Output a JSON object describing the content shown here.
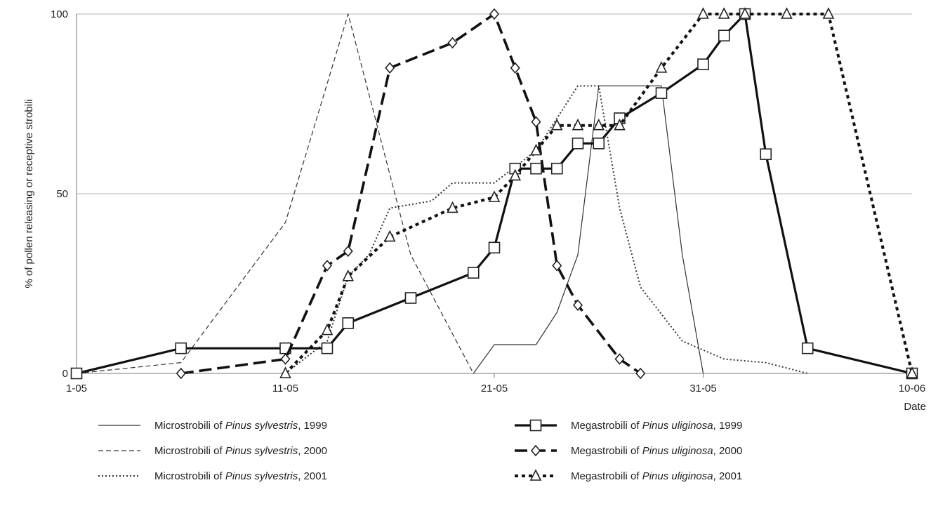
{
  "chart_data": {
    "type": "line",
    "title": "",
    "xlabel": "Date",
    "ylabel": "% of pollen releasing or receptive strobili",
    "x_ticks": [
      "1-05",
      "11-05",
      "21-05",
      "31-05",
      "10-06"
    ],
    "y_ticks": [
      "0",
      "50",
      "100"
    ],
    "xlim": [
      "2000-05-01",
      "2000-06-10"
    ],
    "ylim": [
      0,
      100
    ],
    "grid": "horizontal",
    "legend_position": "bottom",
    "series": [
      {
        "name_prefix": "Microstrobili of ",
        "name_species": "Pinus sylvestris",
        "name_suffix": ", 1999",
        "style": "thin-solid",
        "marker": "none",
        "points": [
          {
            "x": "2000-05-20",
            "y": 0
          },
          {
            "x": "2000-05-21",
            "y": 8
          },
          {
            "x": "2000-05-23",
            "y": 8
          },
          {
            "x": "2000-05-24",
            "y": 17
          },
          {
            "x": "2000-05-25",
            "y": 33
          },
          {
            "x": "2000-05-26",
            "y": 80
          },
          {
            "x": "2000-05-29",
            "y": 80
          },
          {
            "x": "2000-05-30",
            "y": 33
          },
          {
            "x": "2000-05-31",
            "y": 0
          }
        ]
      },
      {
        "name_prefix": "Microstrobili of ",
        "name_species": "Pinus sylvestris",
        "name_suffix": ", 2000",
        "style": "thin-dashed",
        "marker": "none",
        "points": [
          {
            "x": "2000-05-01",
            "y": 0
          },
          {
            "x": "2000-05-06",
            "y": 3
          },
          {
            "x": "2000-05-11",
            "y": 42
          },
          {
            "x": "2000-05-14",
            "y": 100
          },
          {
            "x": "2000-05-17",
            "y": 33
          },
          {
            "x": "2000-05-20",
            "y": 0
          }
        ]
      },
      {
        "name_prefix": "Microstrobili of ",
        "name_species": "Pinus sylvestris",
        "name_suffix": ", 2001",
        "style": "dotted",
        "marker": "none",
        "points": [
          {
            "x": "2000-05-11",
            "y": 0
          },
          {
            "x": "2000-05-13",
            "y": 9
          },
          {
            "x": "2000-05-14",
            "y": 27
          },
          {
            "x": "2000-05-15",
            "y": 33
          },
          {
            "x": "2000-05-16",
            "y": 46
          },
          {
            "x": "2000-05-18",
            "y": 48
          },
          {
            "x": "2000-05-19",
            "y": 53
          },
          {
            "x": "2000-05-21",
            "y": 53
          },
          {
            "x": "2000-05-23",
            "y": 62
          },
          {
            "x": "2000-05-25",
            "y": 80
          },
          {
            "x": "2000-05-26",
            "y": 80
          },
          {
            "x": "2000-05-27",
            "y": 46
          },
          {
            "x": "2000-05-28",
            "y": 24
          },
          {
            "x": "2000-05-30",
            "y": 9
          },
          {
            "x": "2000-06-01",
            "y": 4
          },
          {
            "x": "2000-06-03",
            "y": 3
          },
          {
            "x": "2000-06-05",
            "y": 0
          }
        ]
      },
      {
        "name_prefix": "Megastrobili of ",
        "name_species": "Pinus uliginosa",
        "name_suffix": ", 1999",
        "style": "thick-solid",
        "marker": "square",
        "points": [
          {
            "x": "2000-05-01",
            "y": 0
          },
          {
            "x": "2000-05-06",
            "y": 7
          },
          {
            "x": "2000-05-11",
            "y": 7
          },
          {
            "x": "2000-05-13",
            "y": 7
          },
          {
            "x": "2000-05-14",
            "y": 14
          },
          {
            "x": "2000-05-17",
            "y": 21
          },
          {
            "x": "2000-05-20",
            "y": 28
          },
          {
            "x": "2000-05-21",
            "y": 35
          },
          {
            "x": "2000-05-22",
            "y": 57
          },
          {
            "x": "2000-05-23",
            "y": 57
          },
          {
            "x": "2000-05-24",
            "y": 57
          },
          {
            "x": "2000-05-25",
            "y": 64
          },
          {
            "x": "2000-05-26",
            "y": 64
          },
          {
            "x": "2000-05-27",
            "y": 71
          },
          {
            "x": "2000-05-29",
            "y": 78
          },
          {
            "x": "2000-05-31",
            "y": 86
          },
          {
            "x": "2000-06-01",
            "y": 94
          },
          {
            "x": "2000-06-02",
            "y": 100
          },
          {
            "x": "2000-06-03",
            "y": 61
          },
          {
            "x": "2000-06-05",
            "y": 7
          },
          {
            "x": "2000-06-10",
            "y": 0
          }
        ]
      },
      {
        "name_prefix": "Megastrobili of ",
        "name_species": "Pinus uliginosa",
        "name_suffix": ", 2000",
        "style": "thick-dashed",
        "marker": "diamond",
        "points": [
          {
            "x": "2000-05-06",
            "y": 0
          },
          {
            "x": "2000-05-11",
            "y": 4
          },
          {
            "x": "2000-05-13",
            "y": 30
          },
          {
            "x": "2000-05-14",
            "y": 34
          },
          {
            "x": "2000-05-16",
            "y": 85
          },
          {
            "x": "2000-05-19",
            "y": 92
          },
          {
            "x": "2000-05-21",
            "y": 100
          },
          {
            "x": "2000-05-22",
            "y": 85
          },
          {
            "x": "2000-05-23",
            "y": 70
          },
          {
            "x": "2000-05-24",
            "y": 30
          },
          {
            "x": "2000-05-25",
            "y": 19
          },
          {
            "x": "2000-05-27",
            "y": 4
          },
          {
            "x": "2000-05-28",
            "y": 0
          }
        ]
      },
      {
        "name_prefix": "Megastrobili of ",
        "name_species": "Pinus uliginosa",
        "name_suffix": ", 2001",
        "style": "thick-dotted",
        "marker": "triangle",
        "points": [
          {
            "x": "2000-05-11",
            "y": 0
          },
          {
            "x": "2000-05-13",
            "y": 12
          },
          {
            "x": "2000-05-14",
            "y": 27
          },
          {
            "x": "2000-05-16",
            "y": 38
          },
          {
            "x": "2000-05-19",
            "y": 46
          },
          {
            "x": "2000-05-21",
            "y": 49
          },
          {
            "x": "2000-05-22",
            "y": 55
          },
          {
            "x": "2000-05-23",
            "y": 62
          },
          {
            "x": "2000-05-24",
            "y": 69
          },
          {
            "x": "2000-05-25",
            "y": 69
          },
          {
            "x": "2000-05-26",
            "y": 69
          },
          {
            "x": "2000-05-27",
            "y": 69
          },
          {
            "x": "2000-05-29",
            "y": 85
          },
          {
            "x": "2000-05-31",
            "y": 100
          },
          {
            "x": "2000-06-01",
            "y": 100
          },
          {
            "x": "2000-06-02",
            "y": 100
          },
          {
            "x": "2000-06-04",
            "y": 100
          },
          {
            "x": "2000-06-06",
            "y": 100
          },
          {
            "x": "2000-06-10",
            "y": 0
          }
        ]
      }
    ]
  }
}
